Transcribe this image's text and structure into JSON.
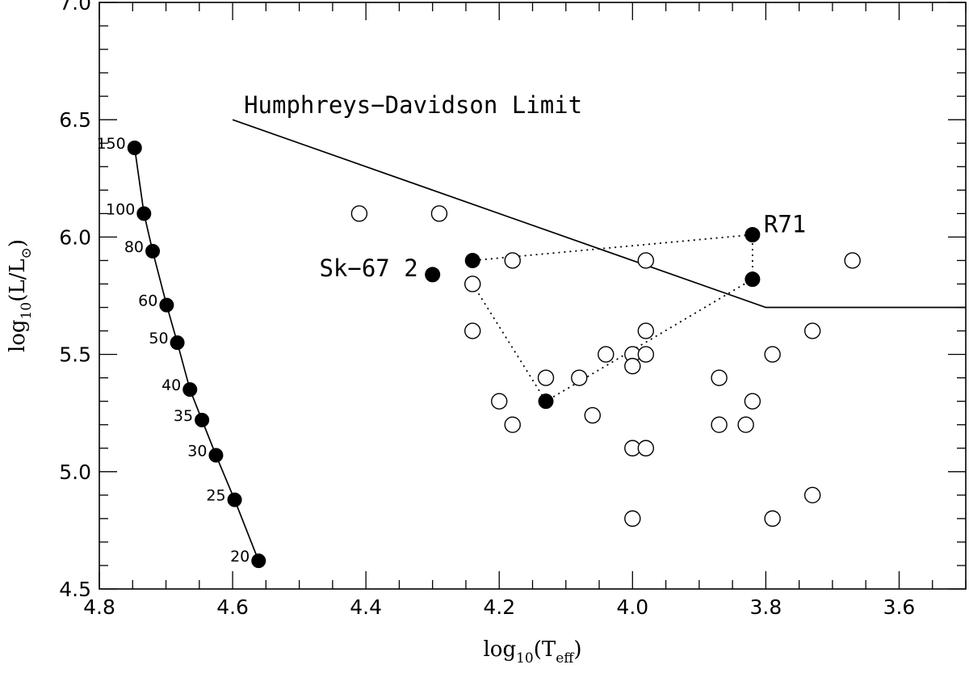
{
  "chart_data": {
    "type": "scatter",
    "title": "",
    "xlabel": {
      "main": "log",
      "sub": "10",
      "paren_open": "(T",
      "paren_sub": "eff",
      "paren_close": ")"
    },
    "ylabel": {
      "main": "log",
      "sub": "10",
      "paren_open": "(L/L",
      "paren_sub": "⊙",
      "paren_close": ")"
    },
    "xlim": [
      4.8,
      3.5
    ],
    "ylim": [
      4.5,
      7.0
    ],
    "x_ticks": [
      4.8,
      4.6,
      4.4,
      4.2,
      4.0,
      3.8,
      3.6
    ],
    "x_tick_labels": [
      "4.8",
      "4.6",
      "4.4",
      "4.2",
      "4.0",
      "3.8",
      "3.6"
    ],
    "y_ticks": [
      4.5,
      5.0,
      5.5,
      6.0,
      6.5,
      7.0
    ],
    "y_tick_labels": [
      "4.5",
      "5.0",
      "5.5",
      "6.0",
      "6.5",
      "7.0"
    ],
    "grid": false,
    "series": [
      {
        "name": "zams_track",
        "style": "filled-line",
        "points": [
          {
            "x": 4.747,
            "y": 6.38,
            "label": "150"
          },
          {
            "x": 4.733,
            "y": 6.1,
            "label": "100"
          },
          {
            "x": 4.72,
            "y": 5.94,
            "label": "80"
          },
          {
            "x": 4.699,
            "y": 5.71,
            "label": "60"
          },
          {
            "x": 4.683,
            "y": 5.55,
            "label": "50"
          },
          {
            "x": 4.664,
            "y": 5.35,
            "label": "40"
          },
          {
            "x": 4.646,
            "y": 5.22,
            "label": "35"
          },
          {
            "x": 4.625,
            "y": 5.07,
            "label": "30"
          },
          {
            "x": 4.597,
            "y": 4.88,
            "label": "25"
          },
          {
            "x": 4.561,
            "y": 4.62,
            "label": "20"
          }
        ]
      },
      {
        "name": "open_stars",
        "style": "open",
        "points": [
          {
            "x": 4.41,
            "y": 6.1
          },
          {
            "x": 4.29,
            "y": 6.1
          },
          {
            "x": 4.18,
            "y": 5.9
          },
          {
            "x": 4.24,
            "y": 5.8
          },
          {
            "x": 4.24,
            "y": 5.6
          },
          {
            "x": 3.98,
            "y": 5.9
          },
          {
            "x": 3.67,
            "y": 5.9
          },
          {
            "x": 3.98,
            "y": 5.6
          },
          {
            "x": 3.73,
            "y": 5.6
          },
          {
            "x": 4.04,
            "y": 5.5
          },
          {
            "x": 4.0,
            "y": 5.5
          },
          {
            "x": 3.98,
            "y": 5.5
          },
          {
            "x": 3.79,
            "y": 5.5
          },
          {
            "x": 4.0,
            "y": 5.45
          },
          {
            "x": 4.13,
            "y": 5.4
          },
          {
            "x": 4.08,
            "y": 5.4
          },
          {
            "x": 3.87,
            "y": 5.4
          },
          {
            "x": 4.2,
            "y": 5.3
          },
          {
            "x": 3.82,
            "y": 5.3
          },
          {
            "x": 4.06,
            "y": 5.24
          },
          {
            "x": 4.18,
            "y": 5.2
          },
          {
            "x": 3.87,
            "y": 5.2
          },
          {
            "x": 3.83,
            "y": 5.2
          },
          {
            "x": 4.0,
            "y": 5.1
          },
          {
            "x": 3.98,
            "y": 5.1
          },
          {
            "x": 3.73,
            "y": 4.9
          },
          {
            "x": 4.0,
            "y": 4.8
          },
          {
            "x": 3.79,
            "y": 4.8
          }
        ]
      },
      {
        "name": "filled_stars",
        "style": "filled",
        "points": [
          {
            "x": 4.3,
            "y": 5.84,
            "label": "Sk-67 2"
          },
          {
            "x": 4.24,
            "y": 5.9
          },
          {
            "x": 4.13,
            "y": 5.3
          },
          {
            "x": 3.82,
            "y": 6.01,
            "label": "R71"
          },
          {
            "x": 3.82,
            "y": 5.82
          }
        ]
      }
    ],
    "hd_limit": {
      "label": "Humphreys−Davidson Limit",
      "points": [
        {
          "x": 4.6,
          "y": 6.5
        },
        {
          "x": 3.8,
          "y": 5.7
        },
        {
          "x": 3.5,
          "y": 5.7
        }
      ]
    },
    "dotted_path": [
      {
        "x": 4.24,
        "y": 5.8
      },
      {
        "x": 4.13,
        "y": 5.3
      },
      {
        "x": 3.82,
        "y": 5.82
      },
      {
        "x": 3.82,
        "y": 6.01
      },
      {
        "x": 4.24,
        "y": 5.9
      }
    ],
    "annotations": {
      "r71": "R71",
      "sk67": "Sk−67 2"
    }
  }
}
